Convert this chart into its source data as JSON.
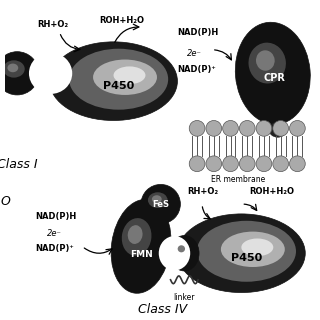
{
  "bg_color": "#ffffff",
  "class_I_label": "Class I",
  "class_IV_label": "Class IV",
  "top_left": {
    "label_rh_o2": "RH+O₂",
    "label_roh_h2o": "ROH+H₂O",
    "label_p450": "P450"
  },
  "top_right": {
    "label_nadph": "NAD(P)H",
    "label_2e": "2e⁻",
    "label_nadp": "NAD(P)⁺",
    "label_cpr": "CPR",
    "label_er": "ER membrane"
  },
  "bottom": {
    "label_nadph": "NAD(P)H",
    "label_2e": "2e⁻",
    "label_nadp": "NAD(P)⁺",
    "label_fmn": "FMN",
    "label_fes": "FeS",
    "label_p450": "P450",
    "label_linker": "linker",
    "label_rh_o2": "RH+O₂",
    "label_roh_h2o": "ROH+H₂O"
  }
}
